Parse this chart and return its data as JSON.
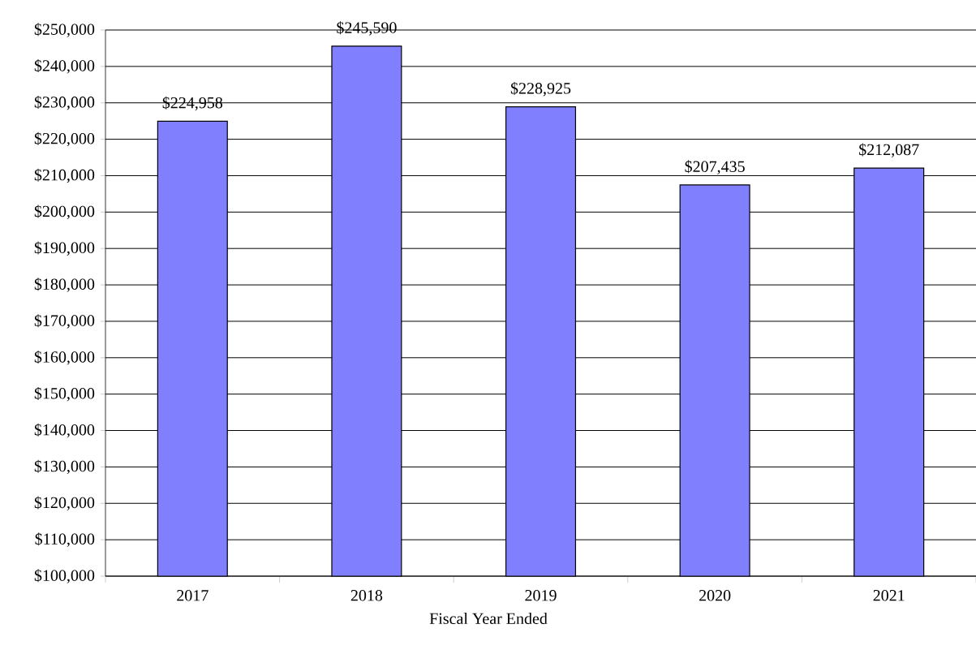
{
  "chart_data": {
    "type": "bar",
    "xlabel": "Fiscal Year Ended",
    "categories": [
      "2017",
      "2018",
      "2019",
      "2020",
      "2021"
    ],
    "values": [
      224958,
      245590,
      228925,
      207435,
      212087
    ],
    "value_labels": [
      "$224,958",
      "$245,590",
      "$228,925",
      "$207,435",
      "$212,087"
    ],
    "color": "#8080ff",
    "ylim": [
      100000,
      250000
    ],
    "yticks": [
      {
        "value": 100000,
        "label": "$100,000"
      },
      {
        "value": 110000,
        "label": "$110,000"
      },
      {
        "value": 120000,
        "label": "$120,000"
      },
      {
        "value": 130000,
        "label": "$130,000"
      },
      {
        "value": 140000,
        "label": "$140,000"
      },
      {
        "value": 150000,
        "label": "$150,000"
      },
      {
        "value": 160000,
        "label": "$160,000"
      },
      {
        "value": 170000,
        "label": "$170,000"
      },
      {
        "value": 180000,
        "label": "$180,000"
      },
      {
        "value": 190000,
        "label": "$190,000"
      },
      {
        "value": 200000,
        "label": "$200,000"
      },
      {
        "value": 210000,
        "label": "$210,000"
      },
      {
        "value": 220000,
        "label": "$220,000"
      },
      {
        "value": 230000,
        "label": "$230,000"
      },
      {
        "value": 240000,
        "label": "$240,000"
      },
      {
        "value": 250000,
        "label": "$250,000"
      }
    ],
    "grid": "y"
  }
}
